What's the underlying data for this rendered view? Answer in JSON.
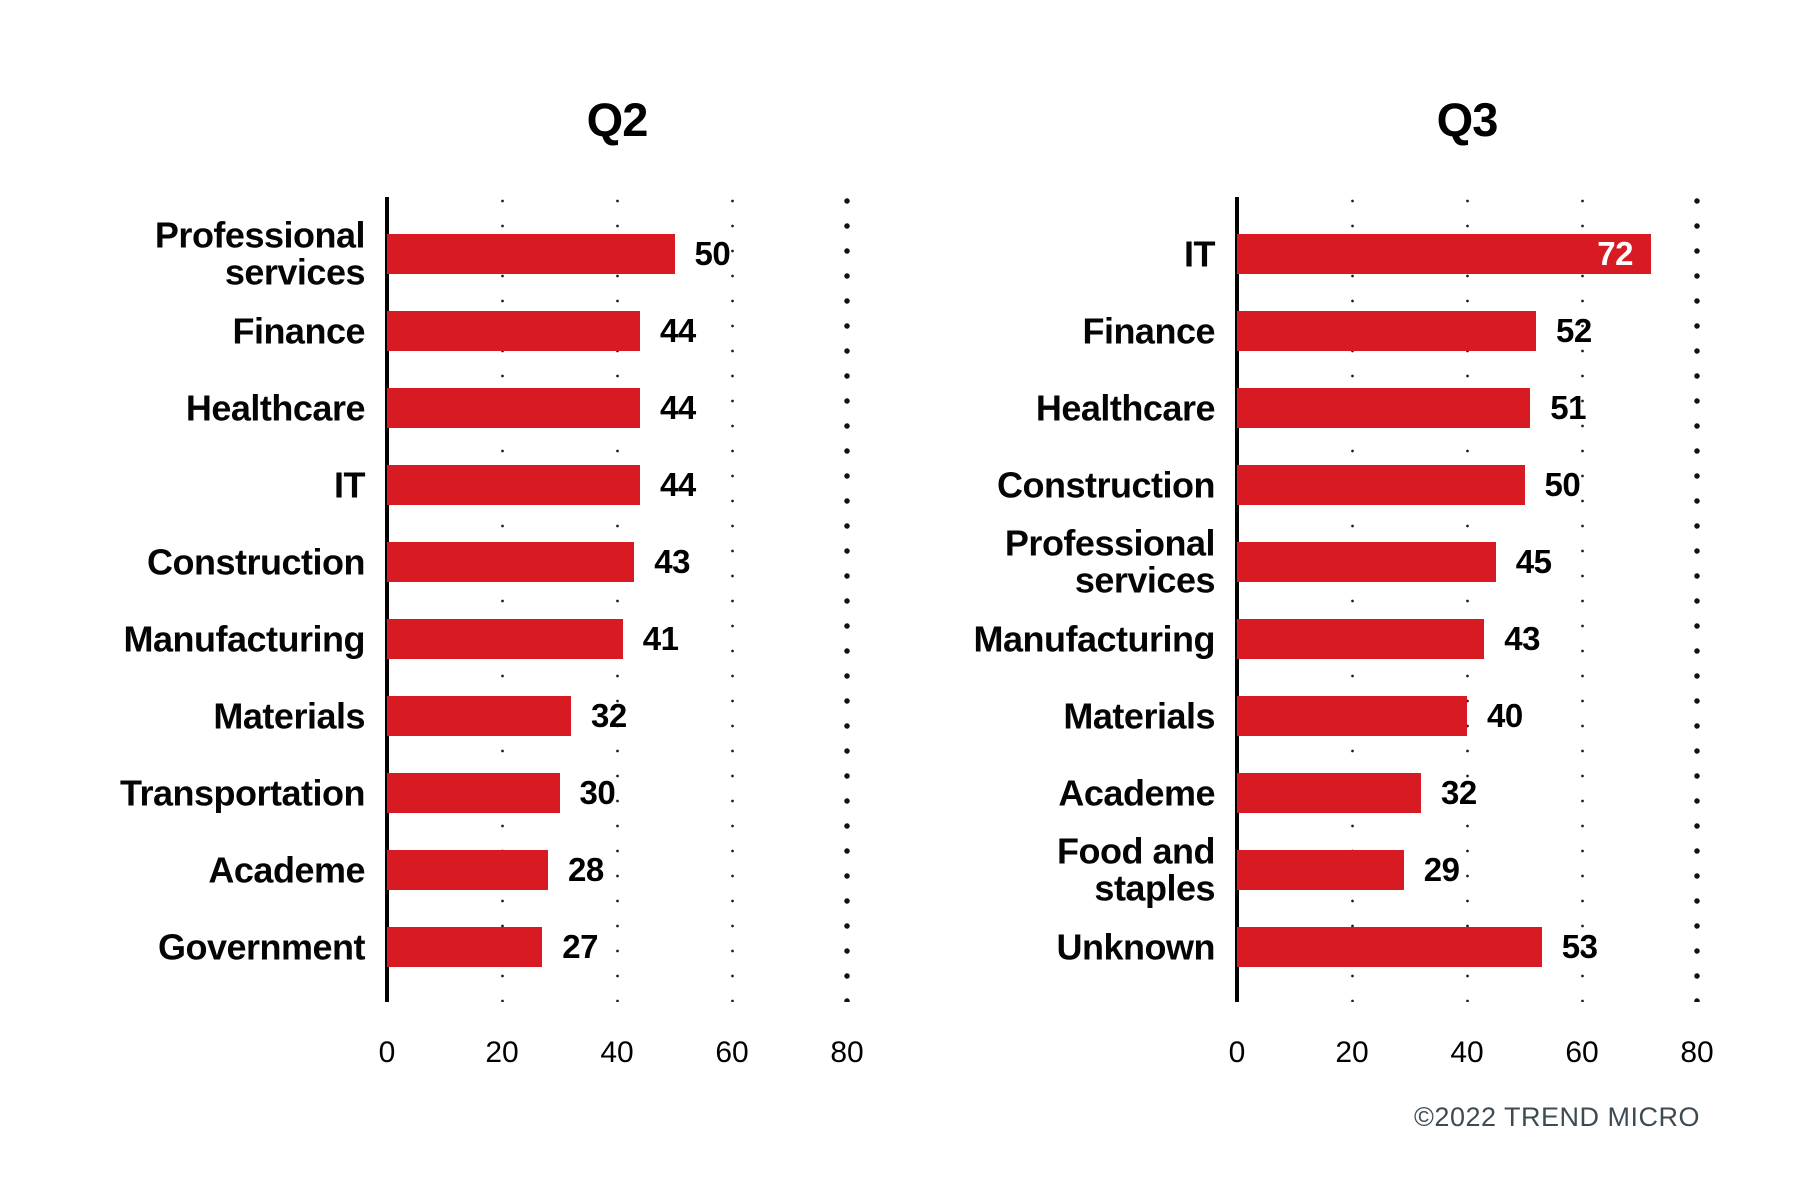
{
  "page": {
    "copyright": "©2022 TREND MICRO"
  },
  "chart_data": [
    {
      "type": "bar",
      "orientation": "horizontal",
      "title": "Q2",
      "categories": [
        "Professional\nservices",
        "Finance",
        "Healthcare",
        "IT",
        "Construction",
        "Manufacturing",
        "Materials",
        "Transportation",
        "Academe",
        "Government"
      ],
      "values": [
        50,
        44,
        44,
        44,
        43,
        41,
        32,
        30,
        28,
        27
      ],
      "xlim": [
        0,
        80
      ],
      "xticks": [
        0,
        20,
        40,
        60,
        80
      ],
      "bar_color": "#d81b22",
      "grid": "dotted-vertical-at-xticks",
      "value_labels": "outside-end",
      "inside_label_rows": []
    },
    {
      "type": "bar",
      "orientation": "horizontal",
      "title": "Q3",
      "categories": [
        "IT",
        "Finance",
        "Healthcare",
        "Construction",
        "Professional\nservices",
        "Manufacturing",
        "Materials",
        "Academe",
        "Food and\nstaples",
        "Unknown"
      ],
      "values": [
        72,
        52,
        51,
        50,
        45,
        43,
        40,
        32,
        29,
        53
      ],
      "xlim": [
        0,
        80
      ],
      "xticks": [
        0,
        20,
        40,
        60,
        80
      ],
      "bar_color": "#d81b22",
      "grid": "dotted-vertical-at-xticks",
      "value_labels": "outside-end",
      "inside_label_rows": [
        0
      ]
    }
  ]
}
